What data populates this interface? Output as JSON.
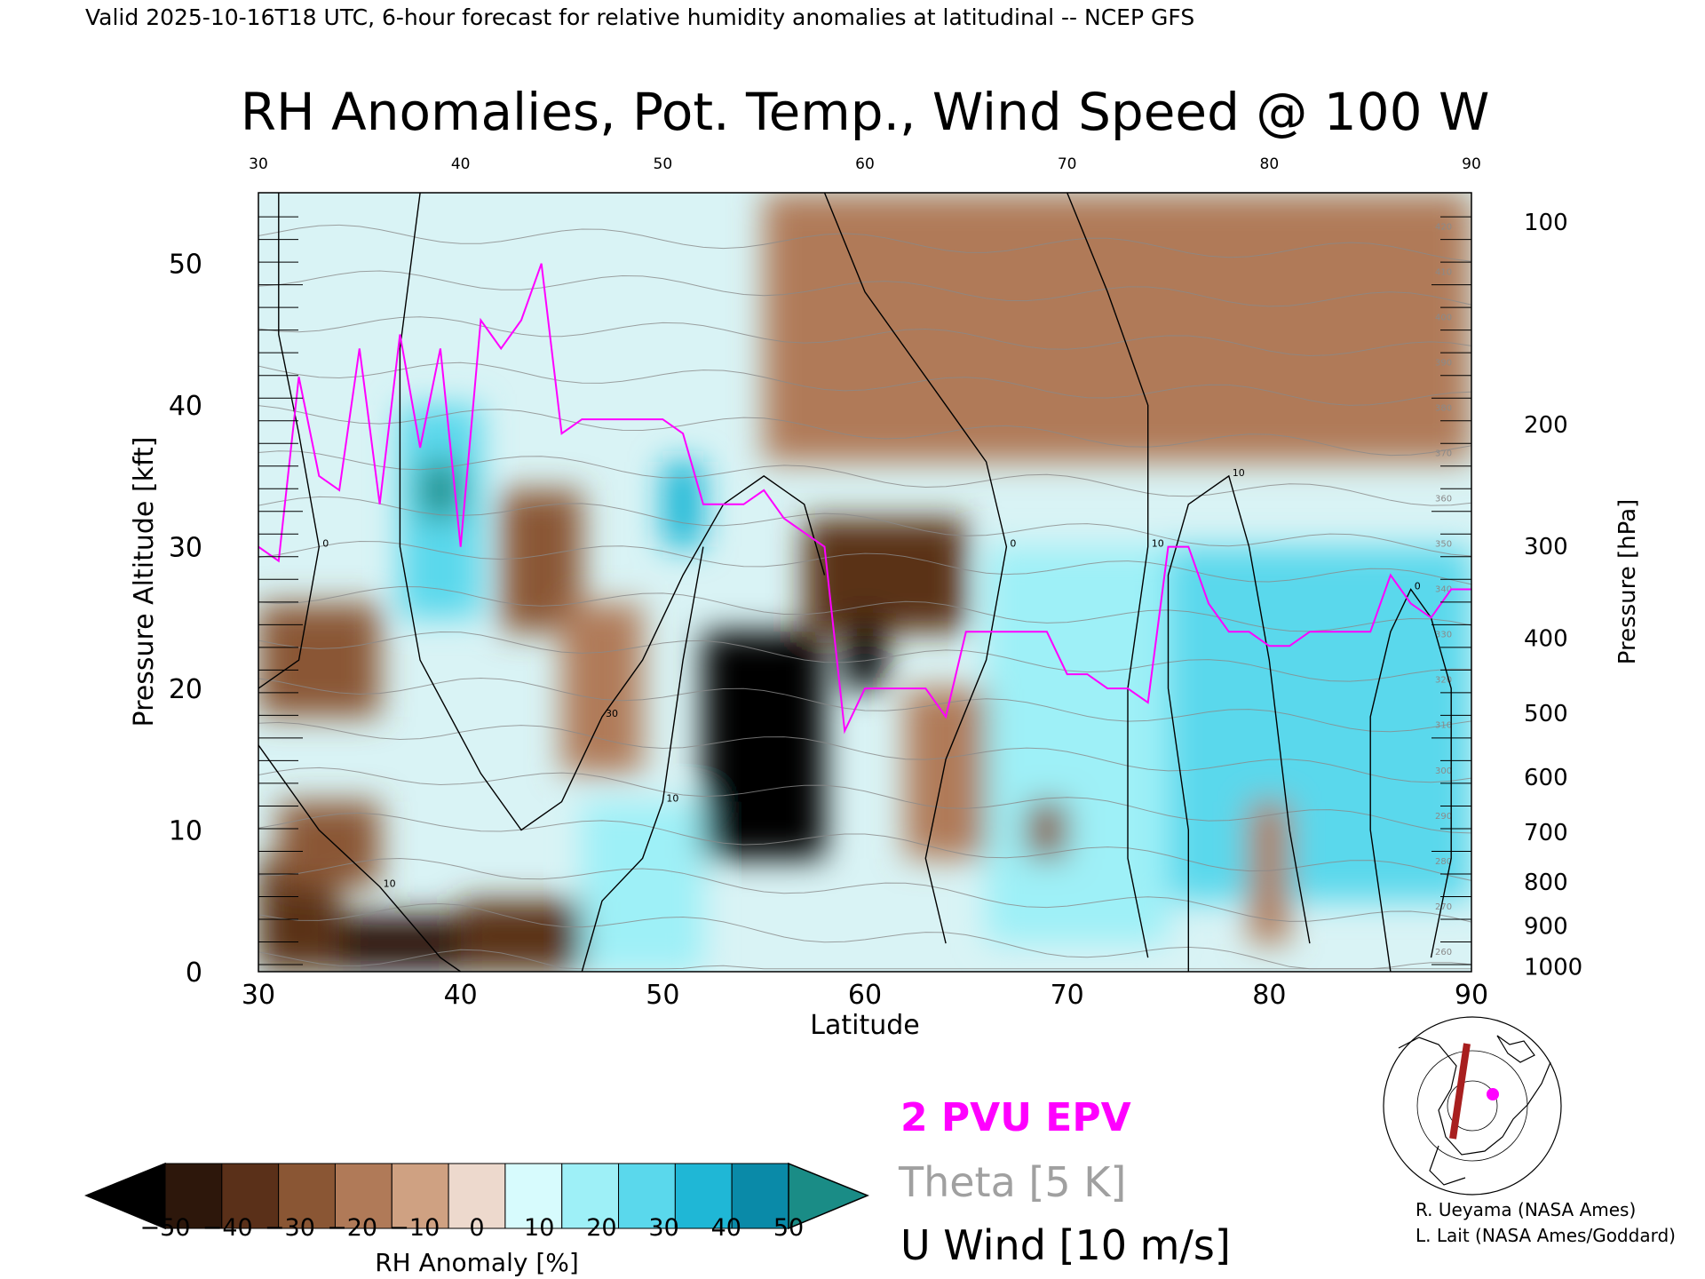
{
  "header_text": "Valid 2025-10-16T18 UTC, 6-hour forecast for relative humidity anomalies at latitudinal -- NCEP GFS",
  "chart_data": {
    "type": "heatmap",
    "title": "RH Anomalies, Pot. Temp., Wind Speed @ 100 W",
    "xlabel": "Latitude",
    "ylabel": "Pressure Altitude [kft]",
    "y2label": "Pressure [hPa]",
    "xlim": [
      30,
      90
    ],
    "ylim": [
      0,
      55
    ],
    "x_ticks": [
      "30",
      "40",
      "50",
      "60",
      "70",
      "80",
      "90"
    ],
    "top_ticks": [
      "30",
      "40",
      "50",
      "60",
      "70",
      "80",
      "90"
    ],
    "y_ticks": [
      "0",
      "10",
      "20",
      "30",
      "40",
      "50"
    ],
    "pressure_ticks": [
      {
        "label": "100",
        "kft": 53.0
      },
      {
        "label": "200",
        "kft": 38.7
      },
      {
        "label": "300",
        "kft": 30.1
      },
      {
        "label": "400",
        "kft": 23.6
      },
      {
        "label": "500",
        "kft": 18.3
      },
      {
        "label": "600",
        "kft": 13.8
      },
      {
        "label": "700",
        "kft": 9.9
      },
      {
        "label": "800",
        "kft": 6.4
      },
      {
        "label": "900",
        "kft": 3.3
      },
      {
        "label": "1000",
        "kft": 0.4
      }
    ],
    "rh_anomaly_cells": [
      {
        "lat": [
          30,
          34
        ],
        "kft": [
          0,
          8
        ],
        "value": -35
      },
      {
        "lat": [
          34,
          40
        ],
        "kft": [
          0,
          4
        ],
        "value": -45
      },
      {
        "lat": [
          40,
          46
        ],
        "kft": [
          0,
          5
        ],
        "value": -35
      },
      {
        "lat": [
          31,
          36
        ],
        "kft": [
          6,
          12
        ],
        "value": -30
      },
      {
        "lat": [
          30,
          36
        ],
        "kft": [
          18,
          26
        ],
        "value": -25
      },
      {
        "lat": [
          37,
          41
        ],
        "kft": [
          25,
          40
        ],
        "value": 35
      },
      {
        "lat": [
          38,
          40
        ],
        "kft": [
          32,
          36
        ],
        "value": 50
      },
      {
        "lat": [
          42,
          46
        ],
        "kft": [
          24,
          34
        ],
        "value": -25
      },
      {
        "lat": [
          45,
          49
        ],
        "kft": [
          14,
          26
        ],
        "value": -20
      },
      {
        "lat": [
          46,
          52
        ],
        "kft": [
          0,
          12
        ],
        "value": 20
      },
      {
        "lat": [
          50,
          52
        ],
        "kft": [
          30,
          36
        ],
        "value": 40
      },
      {
        "lat": [
          52,
          58
        ],
        "kft": [
          8,
          24
        ],
        "value": -50
      },
      {
        "lat": [
          57,
          65
        ],
        "kft": [
          24,
          32
        ],
        "value": -40
      },
      {
        "lat": [
          59,
          61
        ],
        "kft": [
          20,
          25
        ],
        "value": -50
      },
      {
        "lat": [
          62,
          66
        ],
        "kft": [
          8,
          20
        ],
        "value": -20
      },
      {
        "lat": [
          66,
          75
        ],
        "kft": [
          2,
          30
        ],
        "value": 25
      },
      {
        "lat": [
          68,
          70
        ],
        "kft": [
          8,
          12
        ],
        "value": -30
      },
      {
        "lat": [
          75,
          90
        ],
        "kft": [
          5,
          30
        ],
        "value": 30
      },
      {
        "lat": [
          79,
          81
        ],
        "kft": [
          2,
          12
        ],
        "value": -20
      },
      {
        "lat": [
          55,
          90
        ],
        "kft": [
          36,
          55
        ],
        "value": -15
      }
    ],
    "pv_2pvu_line": {
      "lat": [
        30,
        31,
        32,
        33,
        34,
        35,
        36,
        37,
        38,
        39,
        40,
        41,
        42,
        43,
        44,
        45,
        46,
        47,
        48,
        49,
        50,
        51,
        52,
        53,
        54,
        55,
        56,
        57,
        58,
        59,
        60,
        61,
        62,
        63,
        64,
        65,
        66,
        67,
        68,
        69,
        70,
        71,
        72,
        73,
        74,
        75,
        76,
        77,
        78,
        79,
        80,
        81,
        82,
        83,
        84,
        85,
        86,
        87,
        88,
        89,
        90
      ],
      "kft": [
        30,
        29,
        42,
        35,
        34,
        44,
        33,
        45,
        37,
        44,
        30,
        46,
        44,
        46,
        50,
        38,
        39,
        39,
        39,
        39,
        39,
        38,
        33,
        33,
        33,
        34,
        32,
        31,
        30,
        17,
        20,
        20,
        20,
        20,
        18,
        24,
        24,
        24,
        24,
        24,
        21,
        21,
        20,
        20,
        19,
        30,
        30,
        26,
        24,
        24,
        23,
        23,
        24,
        24,
        24,
        24,
        28,
        26,
        25,
        27,
        27
      ]
    },
    "theta_levels": [
      "260",
      "270",
      "280",
      "290",
      "300",
      "310",
      "320",
      "330",
      "340",
      "350",
      "360",
      "370",
      "380",
      "390",
      "400",
      "410",
      "420"
    ],
    "wind_contour_labels": [
      "0",
      "10",
      "30",
      "10",
      "0",
      "10",
      "10",
      "0"
    ],
    "colorbar": {
      "label": "RH Anomaly [%]",
      "ticks": [
        "−50",
        "−40",
        "−30",
        "−20",
        "−10",
        "0",
        "10",
        "20",
        "30",
        "40",
        "50"
      ],
      "colors": [
        "#2d170b",
        "#5a3019",
        "#8a5634",
        "#b07a58",
        "#cfa182",
        "#edd9cd",
        "#d7fbfd",
        "#9ef0f7",
        "#5ad8ec",
        "#1fb7d6",
        "#0a8aa8"
      ],
      "under_color": "#000000",
      "over_color": "#1a8c86"
    }
  },
  "legend": {
    "pv": "2 PVU EPV",
    "theta": "Theta [5 K]",
    "wind": "U Wind [10 m/s]",
    "pv_color": "#ff00ff",
    "theta_color": "#a0a0a0"
  },
  "credits": [
    "R. Ueyama (NASA Ames)",
    "L. Lait (NASA Ames/Goddard)"
  ]
}
